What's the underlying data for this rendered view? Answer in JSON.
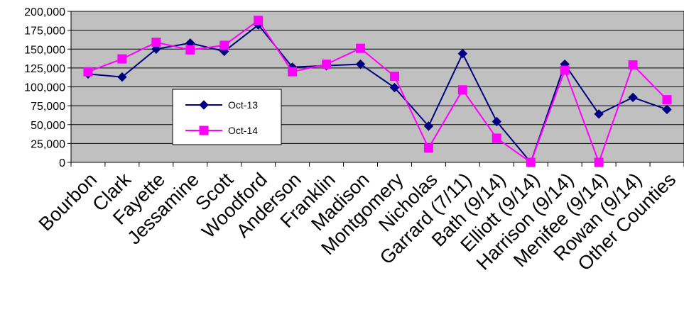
{
  "chart_data": {
    "type": "line",
    "title": "",
    "xlabel": "",
    "ylabel": "",
    "ylim": [
      0,
      200000
    ],
    "y_ticks": [
      "0",
      "25,000",
      "50,000",
      "75,000",
      "100,000",
      "125,000",
      "150,000",
      "175,000",
      "200,000"
    ],
    "y_tick_values": [
      0,
      25000,
      50000,
      75000,
      100000,
      125000,
      150000,
      175000,
      200000
    ],
    "grid": "horizontal",
    "plot_background": "#c0c0c0",
    "legend_position": "center-left",
    "categories": [
      "Bourbon",
      "Clark",
      "Fayette",
      "Jessamine",
      "Scott",
      "Woodford",
      "Anderson",
      "Franklin",
      "Madison",
      "Montgomery",
      "Nicholas",
      "Garrard (7/11)",
      "Bath (9/14)",
      "Elliott (9/14)",
      "Harrison (9/14)",
      "Menifee (9/14)",
      "Rowan (9/14)",
      "Other Counties"
    ],
    "series": [
      {
        "name": "Oct-13",
        "color": "#000080",
        "marker": "diamond",
        "values": [
          117000,
          113000,
          150000,
          158000,
          147000,
          182000,
          126000,
          128000,
          130000,
          99000,
          48000,
          144000,
          54000,
          0,
          130000,
          64000,
          86000,
          70000
        ]
      },
      {
        "name": "Oct-14",
        "color": "#ff00ff",
        "marker": "square",
        "values": [
          120000,
          137000,
          159000,
          149000,
          155000,
          188000,
          120000,
          130000,
          151000,
          114000,
          19000,
          96000,
          32000,
          0,
          122000,
          0,
          129000,
          83000
        ]
      }
    ]
  }
}
